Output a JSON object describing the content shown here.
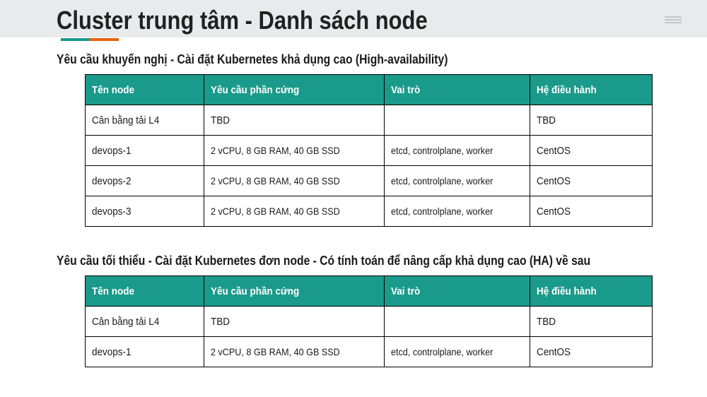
{
  "slide": {
    "title": "Cluster trung tâm - Danh sách node",
    "colors": {
      "header_bg": "#e8eaeb",
      "accent_teal": "#1a9a8a",
      "accent_orange": "#e8620e",
      "table_header": "#1a9a8a"
    },
    "menu_icon": "hamburger-icon"
  },
  "sections": [
    {
      "heading": "Yêu cầu khuyến nghị - Cài đặt Kubernetes khả dụng cao (High-availability)",
      "columns": [
        "Tên node",
        "Yêu cầu phần cứng",
        "Vai trò",
        "Hệ điều hành"
      ],
      "rows": [
        [
          "Cân bằng tải L4",
          "TBD",
          "",
          "TBD"
        ],
        [
          "devops-1",
          "2 vCPU, 8 GB RAM, 40 GB SSD",
          "etcd, controlplane, worker",
          "CentOS"
        ],
        [
          "devops-2",
          "2 vCPU, 8 GB RAM, 40 GB SSD",
          "etcd, controlplane, worker",
          "CentOS"
        ],
        [
          "devops-3",
          "2 vCPU, 8 GB RAM, 40 GB SSD",
          "etcd, controlplane, worker",
          "CentOS"
        ]
      ]
    },
    {
      "heading": "Yêu cầu tối thiểu - Cài đặt Kubernetes đơn node - Có tính toán để nâng cấp khả dụng cao (HA) về sau",
      "columns": [
        "Tên node",
        "Yêu cầu phần cứng",
        "Vai trò",
        "Hệ điều hành"
      ],
      "rows": [
        [
          "Cân bằng tải L4",
          "TBD",
          "",
          "TBD"
        ],
        [
          "devops-1",
          "2 vCPU, 8 GB RAM, 40 GB SSD",
          "etcd, controlplane, worker",
          "CentOS"
        ]
      ]
    }
  ]
}
